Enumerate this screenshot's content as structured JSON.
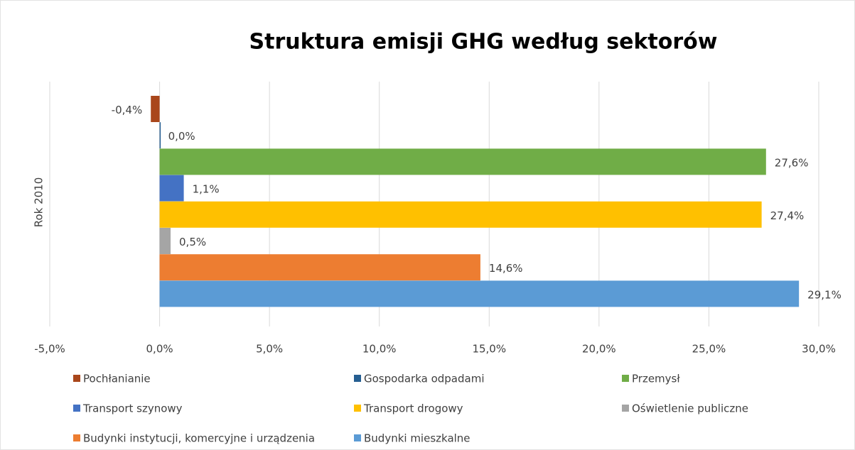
{
  "chart_data": {
    "type": "hbar",
    "title": "Struktura emisji GHG według sektorów",
    "categories": [
      "Rok 2010"
    ],
    "series": [
      {
        "name": "Pochłanianie",
        "color": "#a9461b",
        "values": [
          -0.4
        ],
        "value_labels": [
          "-0,4%"
        ]
      },
      {
        "name": "Gospodarka odpadami",
        "color": "#255e91",
        "values": [
          0.0
        ],
        "value_labels": [
          "0,0%"
        ]
      },
      {
        "name": "Przemysł",
        "color": "#70ad47",
        "values": [
          27.6
        ],
        "value_labels": [
          "27,6%"
        ]
      },
      {
        "name": "Transport szynowy",
        "color": "#4472c4",
        "values": [
          1.1
        ],
        "value_labels": [
          "1,1%"
        ]
      },
      {
        "name": "Transport drogowy",
        "color": "#ffc000",
        "values": [
          27.4
        ],
        "value_labels": [
          "27,4%"
        ]
      },
      {
        "name": "Oświetlenie publiczne",
        "color": "#a5a5a5",
        "values": [
          0.5
        ],
        "value_labels": [
          "0,5%"
        ]
      },
      {
        "name": "Budynki instytucji, komercyjne i urządzenia",
        "color": "#ed7d31",
        "values": [
          14.6
        ],
        "value_labels": [
          "14,6%"
        ]
      },
      {
        "name": "Budynki mieszkalne",
        "color": "#5b9bd5",
        "values": [
          29.1
        ],
        "value_labels": [
          "29,1%"
        ]
      }
    ],
    "xlim": [
      -5,
      30
    ],
    "xticks": [
      {
        "value": -5,
        "label": "-5,0%"
      },
      {
        "value": 0,
        "label": "0,0%"
      },
      {
        "value": 5,
        "label": "5,0%"
      },
      {
        "value": 10,
        "label": "10,0%"
      },
      {
        "value": 15,
        "label": "15,0%"
      },
      {
        "value": 20,
        "label": "20,0%"
      },
      {
        "value": 25,
        "label": "25,0%"
      },
      {
        "value": 30,
        "label": "30,0%"
      }
    ],
    "grid": true,
    "legend": "bottom"
  }
}
